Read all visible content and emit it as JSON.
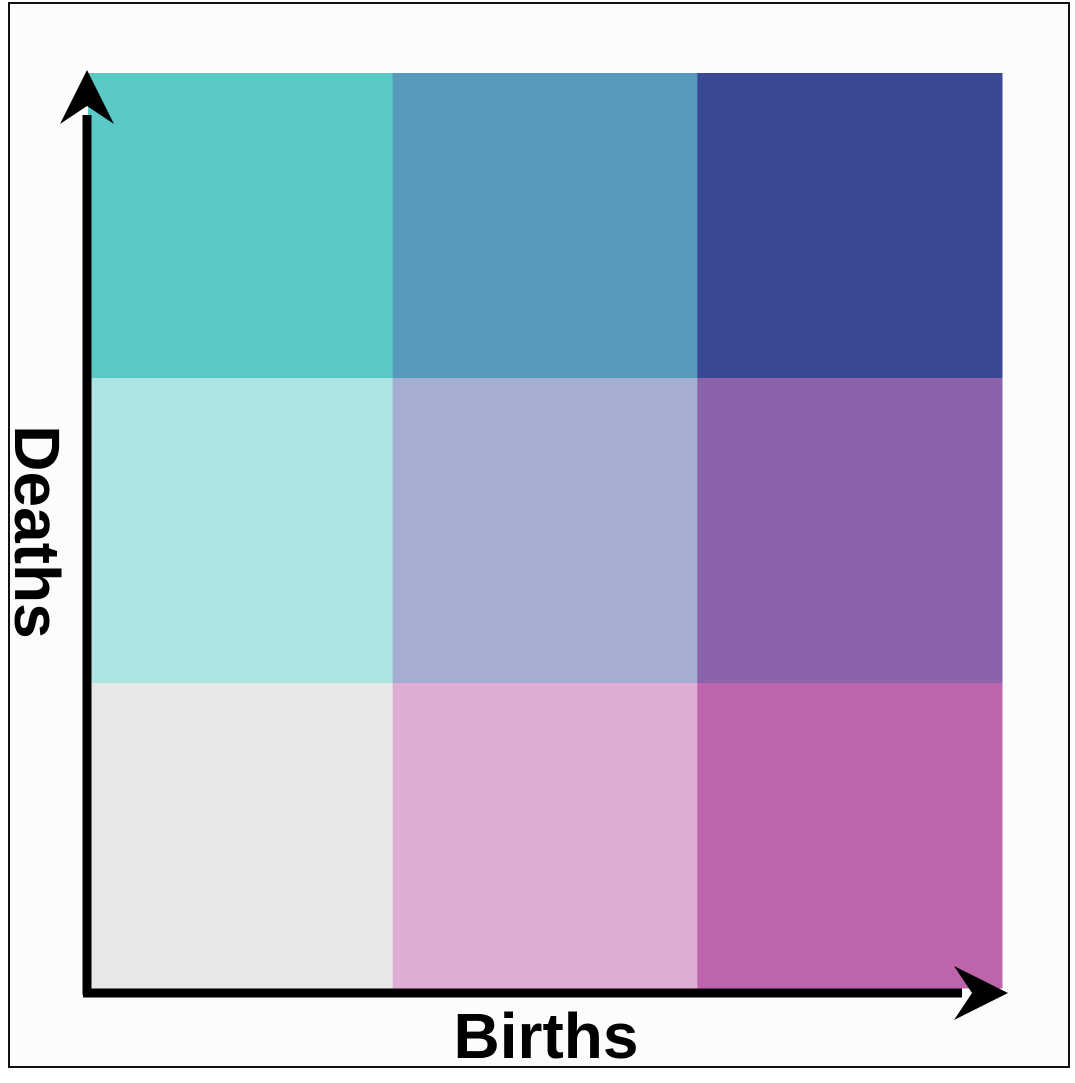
{
  "chart_data": {
    "type": "heatmap",
    "xlabel": "Births",
    "ylabel": "Deaths",
    "grid": false,
    "rows": 3,
    "cols": 3,
    "cells": [
      {
        "row": 0,
        "col": 0,
        "color": "#5bc8c8"
      },
      {
        "row": 0,
        "col": 1,
        "color": "#5799ba"
      },
      {
        "row": 0,
        "col": 2,
        "color": "#3c4896"
      },
      {
        "row": 1,
        "col": 0,
        "color": "#aee5e3"
      },
      {
        "row": 1,
        "col": 1,
        "color": "#a5aed2"
      },
      {
        "row": 1,
        "col": 2,
        "color": "#8c63aa"
      },
      {
        "row": 2,
        "col": 0,
        "color": "#e8e8e8"
      },
      {
        "row": 2,
        "col": 1,
        "color": "#deadd4"
      },
      {
        "row": 2,
        "col": 2,
        "color": "#be64ac"
      }
    ]
  }
}
